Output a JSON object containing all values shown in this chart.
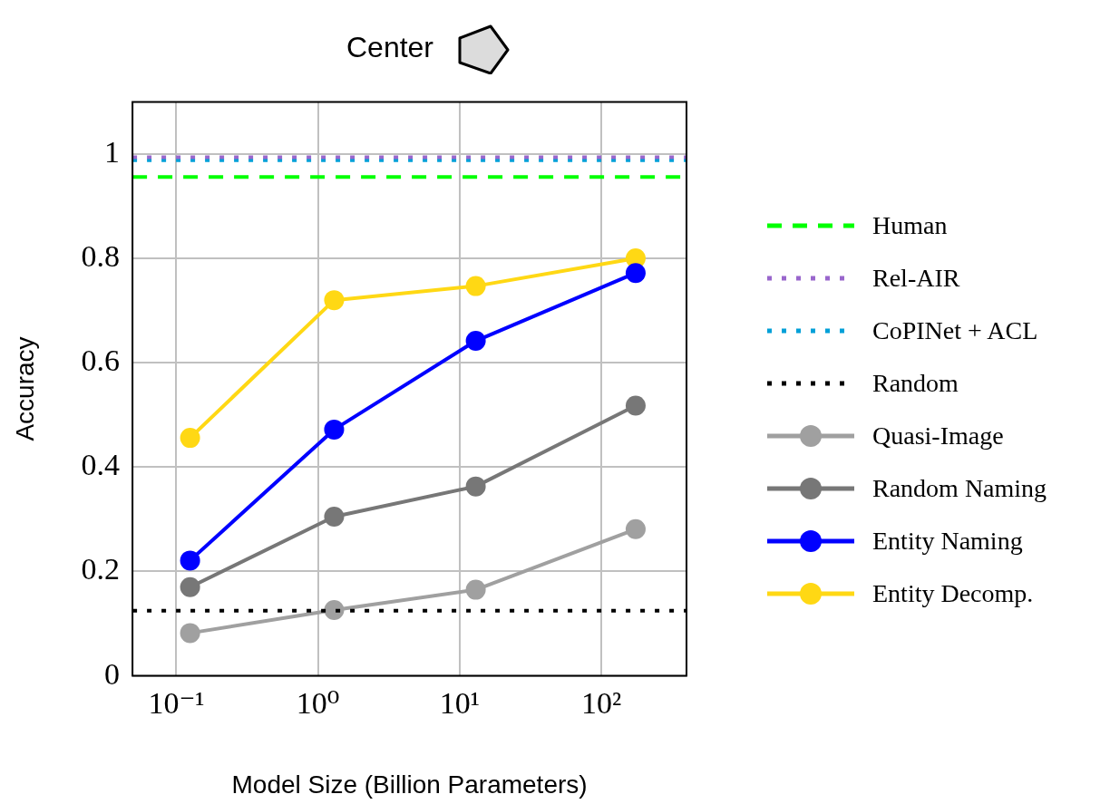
{
  "chart_data": {
    "type": "line",
    "title": "Center",
    "xlabel": "Model Size (Billion Parameters)",
    "ylabel": "Accuracy",
    "log": "x",
    "grid": true,
    "legend": "right",
    "marker": "circle",
    "line_style": "solid",
    "xlim": [
      0.049,
      400
    ],
    "xticks": [
      {
        "value": 0.1,
        "label": "10⁻¹"
      },
      {
        "value": 1,
        "label": "10⁰"
      },
      {
        "value": 10,
        "label": "10¹"
      },
      {
        "value": 100,
        "label": "10²"
      }
    ],
    "ylim": [
      0,
      1.1
    ],
    "yticks": [
      0,
      0.2,
      0.4,
      0.6,
      0.8,
      1
    ],
    "x": [
      0.125,
      1.3,
      13,
      175
    ],
    "ref_lines": [
      {
        "axis": "y",
        "value": 0.956,
        "label": "Human",
        "color": "#00ff00",
        "line_style": "dashed"
      },
      {
        "axis": "y",
        "value": 0.994,
        "label": "Rel-AIR",
        "color": "#9966cc",
        "line_style": "dotted"
      },
      {
        "axis": "y",
        "value": 0.988,
        "label": "CoPINet + ACL",
        "color": "#00a0d8",
        "line_style": "dotted"
      },
      {
        "axis": "y",
        "value": 0.125,
        "label": "Random",
        "color": "#000000",
        "line_style": "dotted"
      }
    ],
    "series": [
      {
        "name": "Quasi-Image",
        "color": "#a0a0a0",
        "values": [
          0.082,
          0.126,
          0.165,
          0.281
        ]
      },
      {
        "name": "Random Naming",
        "color": "#777777",
        "values": [
          0.17,
          0.305,
          0.363,
          0.518
        ]
      },
      {
        "name": "Entity Naming",
        "color": "#0000ff",
        "values": [
          0.221,
          0.472,
          0.642,
          0.772
        ]
      },
      {
        "name": "Entity Decomp.",
        "color": "#ffd814",
        "values": [
          0.456,
          0.72,
          0.747,
          0.8
        ]
      }
    ]
  }
}
